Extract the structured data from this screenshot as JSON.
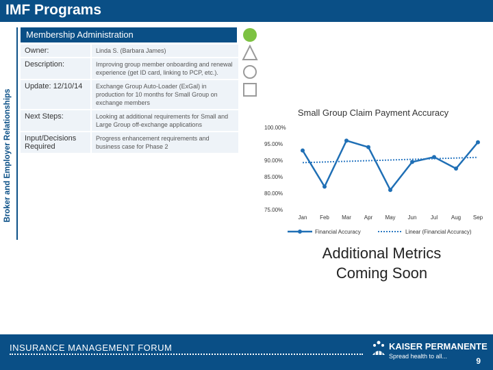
{
  "page": {
    "title": "IMF Programs",
    "side_label": "Broker and Employer Relationships",
    "page_number": "9"
  },
  "section": {
    "header": "Membership Administration",
    "rows": [
      {
        "label": "Owner:",
        "value": "Linda S. (Barbara James)"
      },
      {
        "label": "Description:",
        "value": "Improving group member onboarding and renewal experience (get ID card, linking to PCP, etc.)."
      },
      {
        "label": "Update: 12/10/14",
        "value": "Exchange Group Auto-Loader (ExGal) in production for 10 months for Small Group on exchange members"
      },
      {
        "label": "Next Steps:",
        "value": "Looking at additional requirements for Small and Large Group off-exchange applications"
      },
      {
        "label": "Input/Decisions Required",
        "value": "Progress enhancement requirements and business case for Phase 2"
      }
    ],
    "status_colors": {
      "active": "#7dc242",
      "outline": "#9a9a9a"
    }
  },
  "chart_data": {
    "type": "line",
    "title": "Small Group Claim Payment Accuracy",
    "categories": [
      "Jan",
      "Feb",
      "Mar",
      "Apr",
      "May",
      "Jun",
      "Jul",
      "Aug",
      "Sep"
    ],
    "series": [
      {
        "name": "Financial Accuracy",
        "values": [
          93,
          82,
          96,
          94,
          81,
          89.5,
          91,
          87.5,
          95.5
        ],
        "color": "#1f6fb5"
      },
      {
        "name": "Linear (Financial Accuracy)",
        "values": [
          89.3,
          89.5,
          89.7,
          89.9,
          90.1,
          90.3,
          90.5,
          90.7,
          90.9
        ],
        "color": "#2a78c2",
        "style": "dotted"
      }
    ],
    "ylim": [
      75,
      100
    ],
    "yticks": [
      "100.00%",
      "95.00%",
      "90.00%",
      "85.00%",
      "80.00%",
      "75.00%"
    ],
    "legend": [
      "Financial Accuracy",
      "Linear (Financial Accuracy)"
    ],
    "legend_position": "bottom"
  },
  "coming_soon": {
    "line1": "Additional Metrics",
    "line2": "Coming Soon"
  },
  "footer": {
    "left_text": "INSURANCE MANAGEMENT FORUM",
    "brand": "KAISER PERMANENTE",
    "tagline": "Spread health to all..."
  }
}
